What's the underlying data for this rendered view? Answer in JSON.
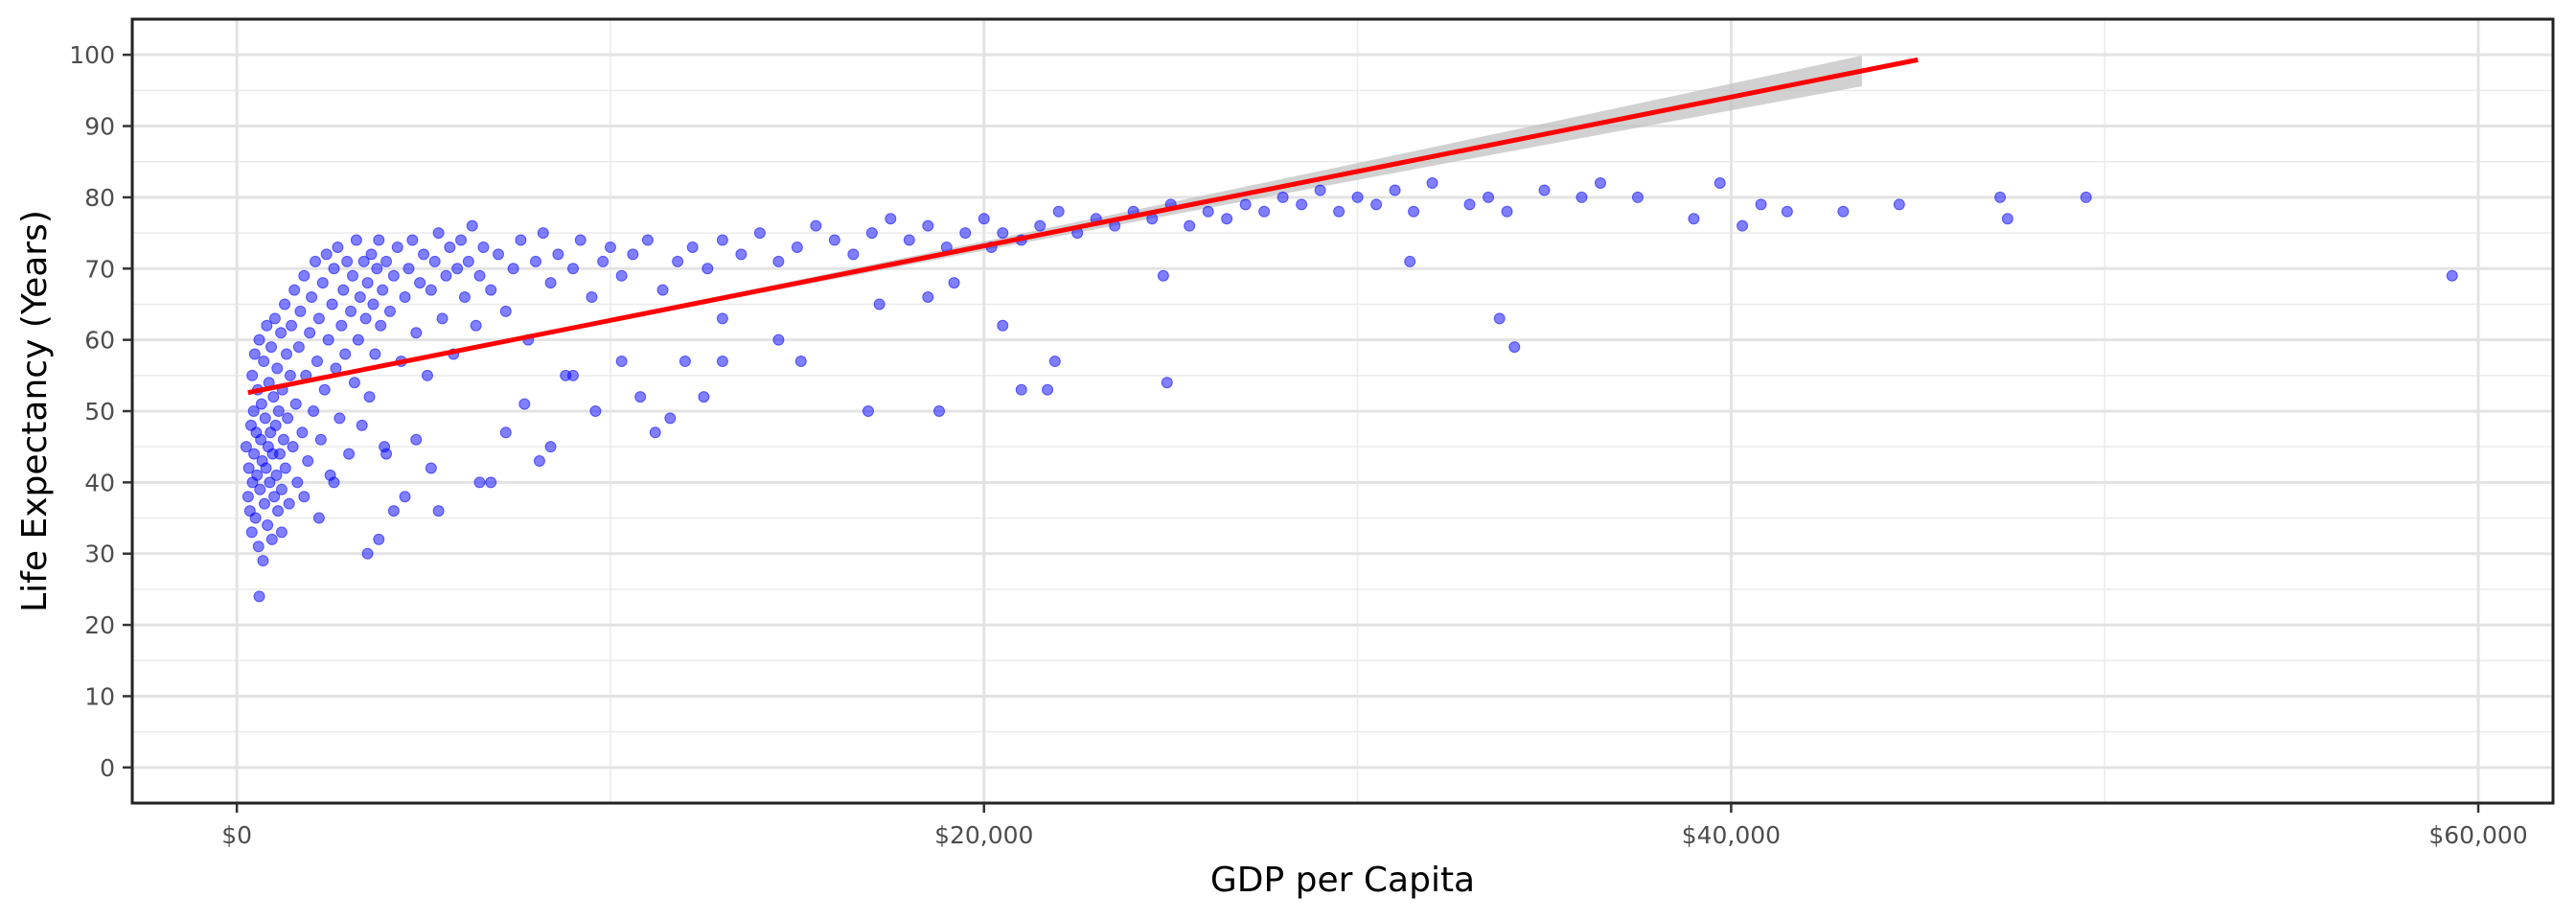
{
  "chart_data": {
    "type": "scatter",
    "title": "",
    "xlabel": "GDP per Capita",
    "ylabel": "Life Expectancy (Years)",
    "xlim": [
      -2800,
      62000
    ],
    "ylim": [
      -5,
      105
    ],
    "x_ticks": [
      {
        "value": 0,
        "label": "$0"
      },
      {
        "value": 20000,
        "label": "$20,000"
      },
      {
        "value": 40000,
        "label": "$40,000"
      },
      {
        "value": 60000,
        "label": "$60,000"
      }
    ],
    "y_ticks": [
      {
        "value": 0,
        "label": "0"
      },
      {
        "value": 10,
        "label": "10"
      },
      {
        "value": 20,
        "label": "20"
      },
      {
        "value": 30,
        "label": "30"
      },
      {
        "value": 40,
        "label": "40"
      },
      {
        "value": 50,
        "label": "50"
      },
      {
        "value": 60,
        "label": "60"
      },
      {
        "value": 70,
        "label": "70"
      },
      {
        "value": 80,
        "label": "80"
      },
      {
        "value": 90,
        "label": "90"
      },
      {
        "value": 100,
        "label": "100"
      }
    ],
    "grid": true,
    "legend": "none",
    "point_color": "#0000ff",
    "point_opacity": 0.5,
    "trend_line": {
      "method": "linear",
      "color": "#ff0000",
      "band_color": "#bdbdbd",
      "points": [
        [
          300,
          52.6
        ],
        [
          45000,
          99.3
        ]
      ]
    },
    "series": [
      {
        "points": [
          [
            250,
            45
          ],
          [
            300,
            38
          ],
          [
            320,
            42
          ],
          [
            350,
            36
          ],
          [
            380,
            48
          ],
          [
            400,
            33
          ],
          [
            410,
            55
          ],
          [
            420,
            40
          ],
          [
            450,
            50
          ],
          [
            460,
            44
          ],
          [
            480,
            58
          ],
          [
            500,
            35
          ],
          [
            520,
            47
          ],
          [
            540,
            41
          ],
          [
            560,
            53
          ],
          [
            580,
            31
          ],
          [
            600,
            60
          ],
          [
            620,
            39
          ],
          [
            640,
            46
          ],
          [
            660,
            51
          ],
          [
            680,
            43
          ],
          [
            700,
            29
          ],
          [
            720,
            57
          ],
          [
            740,
            37
          ],
          [
            760,
            49
          ],
          [
            780,
            42
          ],
          [
            800,
            62
          ],
          [
            820,
            34
          ],
          [
            840,
            45
          ],
          [
            860,
            54
          ],
          [
            880,
            40
          ],
          [
            900,
            47
          ],
          [
            920,
            59
          ],
          [
            940,
            32
          ],
          [
            960,
            44
          ],
          [
            980,
            52
          ],
          [
            1000,
            38
          ],
          [
            1020,
            63
          ],
          [
            1040,
            48
          ],
          [
            1060,
            41
          ],
          [
            1080,
            56
          ],
          [
            1100,
            36
          ],
          [
            1120,
            50
          ],
          [
            1150,
            44
          ],
          [
            1180,
            61
          ],
          [
            1200,
            39
          ],
          [
            1220,
            53
          ],
          [
            1250,
            46
          ],
          [
            1280,
            65
          ],
          [
            1300,
            42
          ],
          [
            1330,
            58
          ],
          [
            1360,
            49
          ],
          [
            1400,
            37
          ],
          [
            1430,
            55
          ],
          [
            1460,
            62
          ],
          [
            1500,
            45
          ],
          [
            1540,
            67
          ],
          [
            1580,
            51
          ],
          [
            1620,
            40
          ],
          [
            1660,
            59
          ],
          [
            1700,
            64
          ],
          [
            1750,
            47
          ],
          [
            1800,
            69
          ],
          [
            1850,
            55
          ],
          [
            1900,
            43
          ],
          [
            1950,
            61
          ],
          [
            2000,
            66
          ],
          [
            2050,
            50
          ],
          [
            2100,
            71
          ],
          [
            2150,
            57
          ],
          [
            2200,
            63
          ],
          [
            2250,
            46
          ],
          [
            2300,
            68
          ],
          [
            2350,
            53
          ],
          [
            2400,
            72
          ],
          [
            2450,
            60
          ],
          [
            2500,
            41
          ],
          [
            2550,
            65
          ],
          [
            2600,
            70
          ],
          [
            2650,
            56
          ],
          [
            2700,
            73
          ],
          [
            2750,
            49
          ],
          [
            2800,
            62
          ],
          [
            2850,
            67
          ],
          [
            2900,
            58
          ],
          [
            2950,
            71
          ],
          [
            3000,
            44
          ],
          [
            3050,
            64
          ],
          [
            3100,
            69
          ],
          [
            3150,
            54
          ],
          [
            3200,
            74
          ],
          [
            3250,
            60
          ],
          [
            3300,
            66
          ],
          [
            3350,
            48
          ],
          [
            3400,
            71
          ],
          [
            3450,
            63
          ],
          [
            3500,
            68
          ],
          [
            3550,
            52
          ],
          [
            3600,
            72
          ],
          [
            3650,
            65
          ],
          [
            3700,
            58
          ],
          [
            3750,
            70
          ],
          [
            3800,
            74
          ],
          [
            3850,
            62
          ],
          [
            3900,
            67
          ],
          [
            3950,
            45
          ],
          [
            4000,
            71
          ],
          [
            4100,
            64
          ],
          [
            4200,
            69
          ],
          [
            4300,
            73
          ],
          [
            4400,
            57
          ],
          [
            4500,
            66
          ],
          [
            4600,
            70
          ],
          [
            4700,
            74
          ],
          [
            4800,
            61
          ],
          [
            4900,
            68
          ],
          [
            5000,
            72
          ],
          [
            5100,
            55
          ],
          [
            5200,
            67
          ],
          [
            5300,
            71
          ],
          [
            5400,
            75
          ],
          [
            5500,
            63
          ],
          [
            5600,
            69
          ],
          [
            5700,
            73
          ],
          [
            5800,
            58
          ],
          [
            5900,
            70
          ],
          [
            6000,
            74
          ],
          [
            6100,
            66
          ],
          [
            6200,
            71
          ],
          [
            6300,
            76
          ],
          [
            6400,
            62
          ],
          [
            6500,
            69
          ],
          [
            6600,
            73
          ],
          [
            6800,
            67
          ],
          [
            7000,
            72
          ],
          [
            7200,
            64
          ],
          [
            7400,
            70
          ],
          [
            7600,
            74
          ],
          [
            7800,
            60
          ],
          [
            8000,
            71
          ],
          [
            8200,
            75
          ],
          [
            8400,
            68
          ],
          [
            8600,
            72
          ],
          [
            8800,
            55
          ],
          [
            9000,
            70
          ],
          [
            9200,
            74
          ],
          [
            9500,
            66
          ],
          [
            9800,
            71
          ],
          [
            10000,
            73
          ],
          [
            10300,
            69
          ],
          [
            10600,
            72
          ],
          [
            11000,
            74
          ],
          [
            11400,
            67
          ],
          [
            11800,
            71
          ],
          [
            12200,
            73
          ],
          [
            12600,
            70
          ],
          [
            13000,
            74
          ],
          [
            13500,
            72
          ],
          [
            14000,
            75
          ],
          [
            14500,
            71
          ],
          [
            15000,
            73
          ],
          [
            15500,
            76
          ],
          [
            16000,
            74
          ],
          [
            16500,
            72
          ],
          [
            17000,
            75
          ],
          [
            17500,
            77
          ],
          [
            18000,
            74
          ],
          [
            18500,
            76
          ],
          [
            19000,
            73
          ],
          [
            19500,
            75
          ],
          [
            20000,
            77
          ],
          [
            20500,
            75
          ],
          [
            21000,
            74
          ],
          [
            21500,
            76
          ],
          [
            22000,
            78
          ],
          [
            22500,
            75
          ],
          [
            23000,
            77
          ],
          [
            23500,
            76
          ],
          [
            24000,
            78
          ],
          [
            24500,
            77
          ],
          [
            25000,
            79
          ],
          [
            25500,
            76
          ],
          [
            26000,
            78
          ],
          [
            26500,
            77
          ],
          [
            27000,
            79
          ],
          [
            27500,
            78
          ],
          [
            28000,
            80
          ],
          [
            28500,
            79
          ],
          [
            29000,
            81
          ],
          [
            29500,
            78
          ],
          [
            30000,
            80
          ],
          [
            30500,
            79
          ],
          [
            31000,
            81
          ],
          [
            31500,
            78
          ],
          [
            32000,
            82
          ],
          [
            33000,
            79
          ],
          [
            33500,
            80
          ],
          [
            34000,
            78
          ],
          [
            35000,
            81
          ],
          [
            36000,
            80
          ],
          [
            36500,
            82
          ],
          [
            37500,
            80
          ],
          [
            39000,
            77
          ],
          [
            39700,
            82
          ],
          [
            40300,
            76
          ],
          [
            40800,
            79
          ],
          [
            41500,
            78
          ],
          [
            43000,
            78
          ],
          [
            44500,
            79
          ],
          [
            47200,
            80
          ],
          [
            47400,
            77
          ],
          [
            49500,
            80
          ],
          [
            59300,
            69
          ],
          [
            600,
            24
          ],
          [
            1200,
            33
          ],
          [
            1800,
            38
          ],
          [
            2200,
            35
          ],
          [
            2600,
            40
          ],
          [
            3500,
            30
          ],
          [
            3800,
            32
          ],
          [
            4200,
            36
          ],
          [
            4500,
            38
          ],
          [
            5400,
            36
          ],
          [
            4000,
            44
          ],
          [
            4800,
            46
          ],
          [
            5200,
            42
          ],
          [
            6500,
            40
          ],
          [
            6800,
            40
          ],
          [
            7200,
            47
          ],
          [
            7700,
            51
          ],
          [
            8100,
            43
          ],
          [
            8400,
            45
          ],
          [
            9000,
            55
          ],
          [
            9600,
            50
          ],
          [
            10300,
            57
          ],
          [
            10800,
            52
          ],
          [
            11200,
            47
          ],
          [
            11600,
            49
          ],
          [
            12000,
            57
          ],
          [
            12500,
            52
          ],
          [
            13000,
            57
          ],
          [
            14500,
            60
          ],
          [
            15100,
            57
          ],
          [
            16900,
            50
          ],
          [
            18800,
            50
          ],
          [
            20200,
            73
          ],
          [
            21000,
            53
          ],
          [
            21700,
            53
          ],
          [
            21900,
            57
          ],
          [
            24900,
            54
          ],
          [
            24800,
            69
          ],
          [
            31400,
            71
          ],
          [
            33800,
            63
          ],
          [
            34200,
            59
          ],
          [
            13000,
            63
          ],
          [
            17200,
            65
          ],
          [
            18500,
            66
          ],
          [
            19200,
            68
          ],
          [
            20500,
            62
          ]
        ]
      }
    ]
  }
}
